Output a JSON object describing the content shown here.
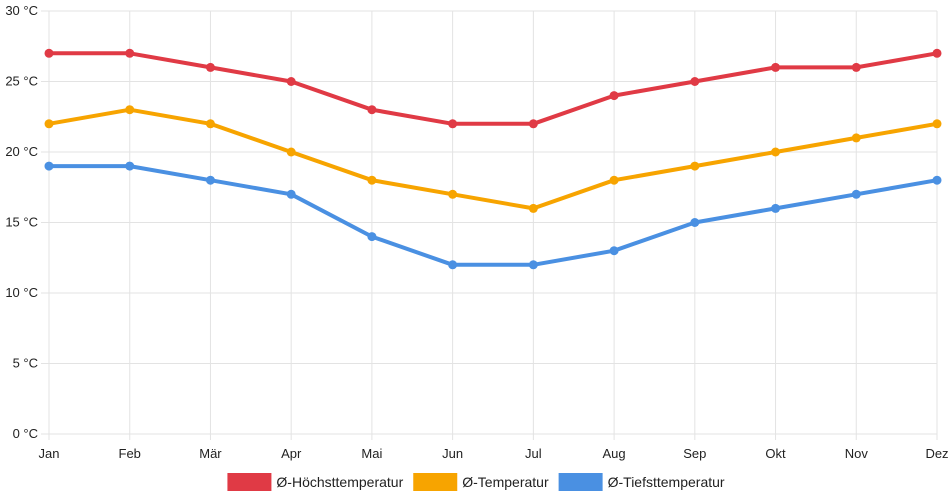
{
  "chart_data": {
    "type": "line",
    "categories": [
      "Jan",
      "Feb",
      "Mär",
      "Apr",
      "Mai",
      "Jun",
      "Jul",
      "Aug",
      "Sep",
      "Okt",
      "Nov",
      "Dez"
    ],
    "y_ticks": [
      "0 °C",
      "5 °C",
      "10 °C",
      "15 °C",
      "20 °C",
      "25 °C",
      "30 °C"
    ],
    "ylim": [
      0,
      30
    ],
    "grid": true,
    "legend_position": "bottom",
    "series": [
      {
        "name": "Ø-Höchsttemperatur",
        "color": "#e03a45",
        "values": [
          27,
          27,
          26,
          25,
          23,
          22,
          22,
          24,
          25,
          26,
          26,
          27
        ]
      },
      {
        "name": "Ø-Temperatur",
        "color": "#f7a400",
        "values": [
          22,
          23,
          22,
          20,
          18,
          17,
          16,
          18,
          19,
          20,
          21,
          22
        ]
      },
      {
        "name": "Ø-Tiefsttemperatur",
        "color": "#4a90e2",
        "values": [
          19,
          19,
          18,
          17,
          14,
          12,
          12,
          13,
          15,
          16,
          17,
          18
        ]
      }
    ]
  }
}
